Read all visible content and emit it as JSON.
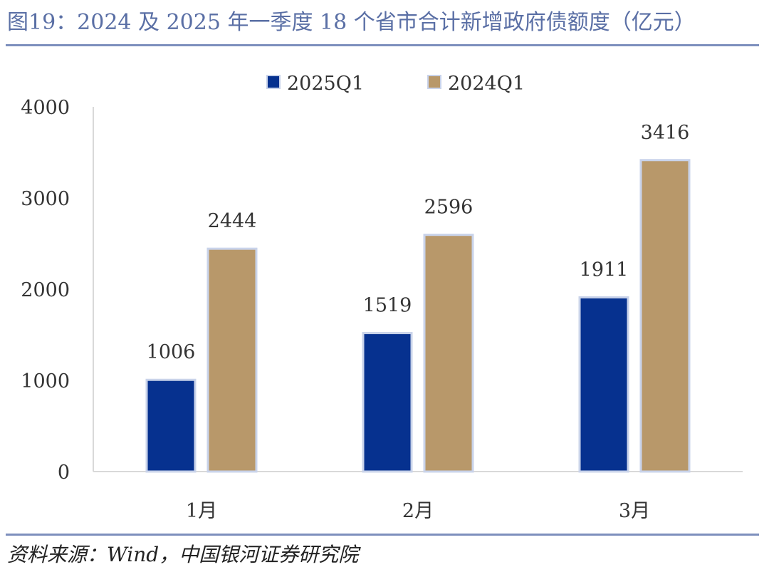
{
  "title": "图19：2024 及 2025 年一季度 18 个省市合计新增政府债额度（亿元）",
  "source": "资料来源：Wind，中国银河证券研究院",
  "colors": {
    "title": "#5a6fa5",
    "rule": "#7d8fbd",
    "series_2025": "#06318f",
    "series_2024": "#b8986a",
    "bar_outline": "#c9d3ea",
    "axis": "#d9d9d9",
    "text": "#333333"
  },
  "chart_data": {
    "type": "bar",
    "categories": [
      "1月",
      "2月",
      "3月"
    ],
    "series": [
      {
        "name": "2025Q1",
        "values": [
          1006,
          1519,
          1911
        ]
      },
      {
        "name": "2024Q1",
        "values": [
          2444,
          2596,
          3416
        ]
      }
    ],
    "yticks": [
      "0",
      "1000",
      "2000",
      "3000",
      "4000"
    ],
    "ylim": [
      0,
      4000
    ],
    "data_labels": [
      [
        "1006",
        "1519",
        "1911"
      ],
      [
        "2444",
        "2596",
        "3416"
      ]
    ],
    "legend_position": "top-center",
    "grid": false
  }
}
